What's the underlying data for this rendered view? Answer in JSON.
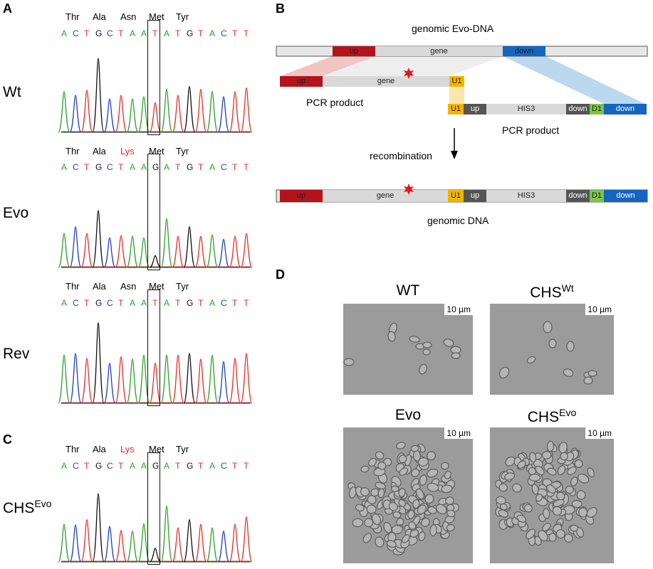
{
  "panels": {
    "a": "A",
    "b": "B",
    "c": "C",
    "d": "D"
  },
  "chromatograms": {
    "wt": {
      "label": "Wt",
      "amino_acids": [
        "Thr",
        "Ala",
        "Asn",
        "Met",
        "Tyr"
      ],
      "mutant_index": -1,
      "sequence": [
        "A",
        "C",
        "T",
        "G",
        "C",
        "T",
        "A",
        "A",
        "T",
        "A",
        "T",
        "G",
        "T",
        "A",
        "C",
        "T",
        "T"
      ]
    },
    "evo": {
      "label": "Evo",
      "amino_acids": [
        "Thr",
        "Ala",
        "Lys",
        "Met",
        "Tyr"
      ],
      "mutant_index": 2,
      "sequence": [
        "A",
        "C",
        "T",
        "G",
        "C",
        "T",
        "A",
        "A",
        "G",
        "A",
        "T",
        "G",
        "T",
        "A",
        "C",
        "T",
        "T"
      ]
    },
    "rev": {
      "label": "Rev",
      "amino_acids": [
        "Thr",
        "Ala",
        "Asn",
        "Met",
        "Tyr"
      ],
      "mutant_index": -1,
      "sequence": [
        "A",
        "C",
        "T",
        "G",
        "C",
        "T",
        "A",
        "A",
        "T",
        "A",
        "T",
        "G",
        "T",
        "A",
        "C",
        "T",
        "T"
      ]
    },
    "chs": {
      "label_main": "CHS",
      "label_sup": "Evo",
      "amino_acids": [
        "Thr",
        "Ala",
        "Lys",
        "Met",
        "Tyr"
      ],
      "mutant_index": 2,
      "sequence": [
        "A",
        "C",
        "T",
        "G",
        "C",
        "T",
        "A",
        "A",
        "G",
        "A",
        "T",
        "G",
        "T",
        "A",
        "C",
        "T",
        "T"
      ]
    }
  },
  "base_colors": {
    "A": "#2ca02c",
    "C": "#1f3fbf",
    "G": "#111111",
    "T": "#e0312a",
    "mutant_aa": "#d0302a"
  },
  "scheme": {
    "title_top": "genomic Evo-DNA",
    "up": "up",
    "gene": "gene",
    "down": "down",
    "u1": "U1",
    "d1": "D1",
    "his3": "HIS3",
    "pcr_product_1": "PCR product",
    "pcr_product_2": "PCR product",
    "recombination": "recombination",
    "arrow": "↓",
    "title_bottom": "genomic DNA",
    "colors": {
      "up": "#b3141b",
      "down": "#1565c0",
      "u1": "#f0b400",
      "d1": "#7cc44a",
      "dark": "#555555",
      "gene": "#d9d9d9",
      "star": "#e01818"
    }
  },
  "micrographs": {
    "wt_title": "WT",
    "chswt_title_main": "CHS",
    "chswt_title_sup": "Wt",
    "evo_title": "Evo",
    "chsevo_title_main": "CHS",
    "chsevo_title_sup": "Evo",
    "scale_bar": "10 µm"
  }
}
